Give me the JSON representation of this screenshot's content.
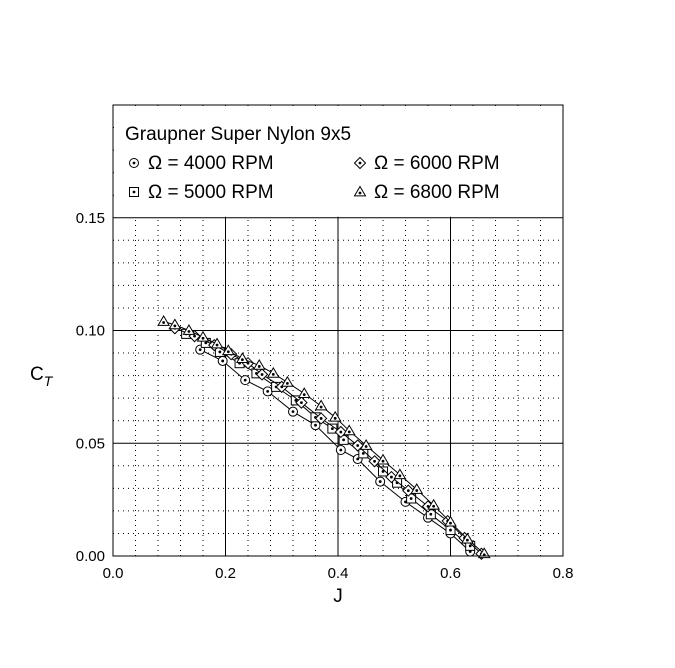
{
  "chart_data": {
    "type": "scatter",
    "title": "Graupner Super Nylon 9x5",
    "xlabel": "J",
    "ylabel": "C",
    "ylabel_subscript": "T",
    "xlim": [
      0.0,
      0.8
    ],
    "ylim": [
      0.0,
      0.2
    ],
    "xticks": [
      "0.0",
      "0.2",
      "0.4",
      "0.6",
      "0.8"
    ],
    "yticks": [
      "0.00",
      "0.05",
      "0.10",
      "0.15"
    ],
    "grid": "major solid, minor dotted",
    "legend_position": "top",
    "series": [
      {
        "name": "Ω = 4000 RPM",
        "marker": "circle-dot",
        "x": [
          0.155,
          0.195,
          0.235,
          0.275,
          0.32,
          0.36,
          0.405,
          0.435,
          0.475,
          0.52,
          0.56,
          0.6,
          0.635
        ],
        "y": [
          0.0915,
          0.0865,
          0.078,
          0.073,
          0.064,
          0.058,
          0.047,
          0.043,
          0.033,
          0.024,
          0.017,
          0.01,
          0.002
        ]
      },
      {
        "name": "Ω = 5000 RPM",
        "marker": "square-dot",
        "x": [
          0.13,
          0.165,
          0.19,
          0.225,
          0.255,
          0.29,
          0.325,
          0.36,
          0.39,
          0.41,
          0.445,
          0.48,
          0.505,
          0.53,
          0.565,
          0.6,
          0.635
        ],
        "y": [
          0.0985,
          0.0945,
          0.0905,
          0.0855,
          0.081,
          0.075,
          0.069,
          0.0615,
          0.0565,
          0.0515,
          0.0455,
          0.0375,
          0.0325,
          0.0255,
          0.0185,
          0.0115,
          0.0045
        ]
      },
      {
        "name": "Ω = 6000 RPM",
        "marker": "diamond-dot",
        "x": [
          0.11,
          0.145,
          0.18,
          0.21,
          0.24,
          0.265,
          0.3,
          0.335,
          0.37,
          0.405,
          0.435,
          0.465,
          0.495,
          0.525,
          0.56,
          0.595,
          0.625,
          0.655
        ],
        "y": [
          0.101,
          0.0975,
          0.0935,
          0.0895,
          0.0855,
          0.0805,
          0.075,
          0.068,
          0.061,
          0.055,
          0.049,
          0.042,
          0.035,
          0.029,
          0.022,
          0.0155,
          0.008,
          0.001
        ]
      },
      {
        "name": "Ω = 6800 RPM",
        "marker": "triangle-dot",
        "x": [
          0.09,
          0.11,
          0.135,
          0.16,
          0.185,
          0.205,
          0.23,
          0.26,
          0.285,
          0.31,
          0.34,
          0.37,
          0.395,
          0.42,
          0.45,
          0.48,
          0.51,
          0.54,
          0.57,
          0.6,
          0.63,
          0.66
        ],
        "y": [
          0.104,
          0.1025,
          0.1,
          0.097,
          0.094,
          0.091,
          0.0875,
          0.0845,
          0.081,
          0.077,
          0.072,
          0.0665,
          0.0615,
          0.0555,
          0.049,
          0.0425,
          0.036,
          0.0295,
          0.0225,
          0.015,
          0.0075,
          0.001
        ]
      }
    ]
  }
}
